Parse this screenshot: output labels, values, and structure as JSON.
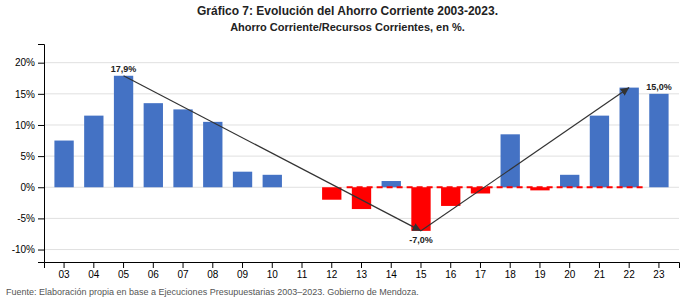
{
  "chart_data": {
    "type": "bar",
    "title": "Gráfico 7: Evolución del Ahorro Corriente 2003-2023.",
    "subtitle": "Ahorro Corriente/Recursos Corrientes, en %.",
    "source": "Fuente: Elaboración propia en base a Ejecuciones Presupuestarias 2003–2023. Gobierno de Mendoza.",
    "categories": [
      "03",
      "04",
      "05",
      "06",
      "07",
      "08",
      "09",
      "10",
      "11",
      "12",
      "13",
      "14",
      "15",
      "16",
      "17",
      "18",
      "19",
      "20",
      "21",
      "22",
      "23"
    ],
    "values": [
      7.5,
      11.5,
      17.9,
      13.5,
      12.5,
      10.5,
      2.5,
      2.0,
      0.0,
      -2.0,
      -3.5,
      1.0,
      -7.0,
      -3.0,
      -1.0,
      8.5,
      -0.5,
      2.0,
      11.5,
      16.0,
      15.0
    ],
    "colors": [
      "#4472C4",
      "#4472C4",
      "#4472C4",
      "#4472C4",
      "#4472C4",
      "#4472C4",
      "#4472C4",
      "#4472C4",
      "#4472C4",
      "#FF0000",
      "#FF0000",
      "#4472C4",
      "#FF0000",
      "#FF0000",
      "#FF0000",
      "#4472C4",
      "#FF0000",
      "#4472C4",
      "#4472C4",
      "#4472C4",
      "#4472C4"
    ],
    "data_labels": true,
    "value_labels": [
      null,
      null,
      "17,9%",
      null,
      null,
      null,
      null,
      null,
      null,
      null,
      null,
      null,
      "-7,0%",
      null,
      null,
      null,
      null,
      null,
      null,
      null,
      "15,0%"
    ],
    "reference_line": {
      "value": 0,
      "from": "13",
      "to": "22",
      "color": "#FF0000",
      "line_style": "dashed"
    },
    "arrows": [
      {
        "from": "05",
        "to": "15"
      },
      {
        "from": "15",
        "to": "22"
      }
    ],
    "ylim": [
      -12,
      23
    ],
    "yticks": [
      {
        "value": -10,
        "label": "-10%"
      },
      {
        "value": -5,
        "label": "-5%"
      },
      {
        "value": 0,
        "label": "0%"
      },
      {
        "value": 5,
        "label": "5%"
      },
      {
        "value": 10,
        "label": "10%"
      },
      {
        "value": 15,
        "label": "15%"
      },
      {
        "value": 20,
        "label": "20%"
      }
    ],
    "grid": true
  }
}
